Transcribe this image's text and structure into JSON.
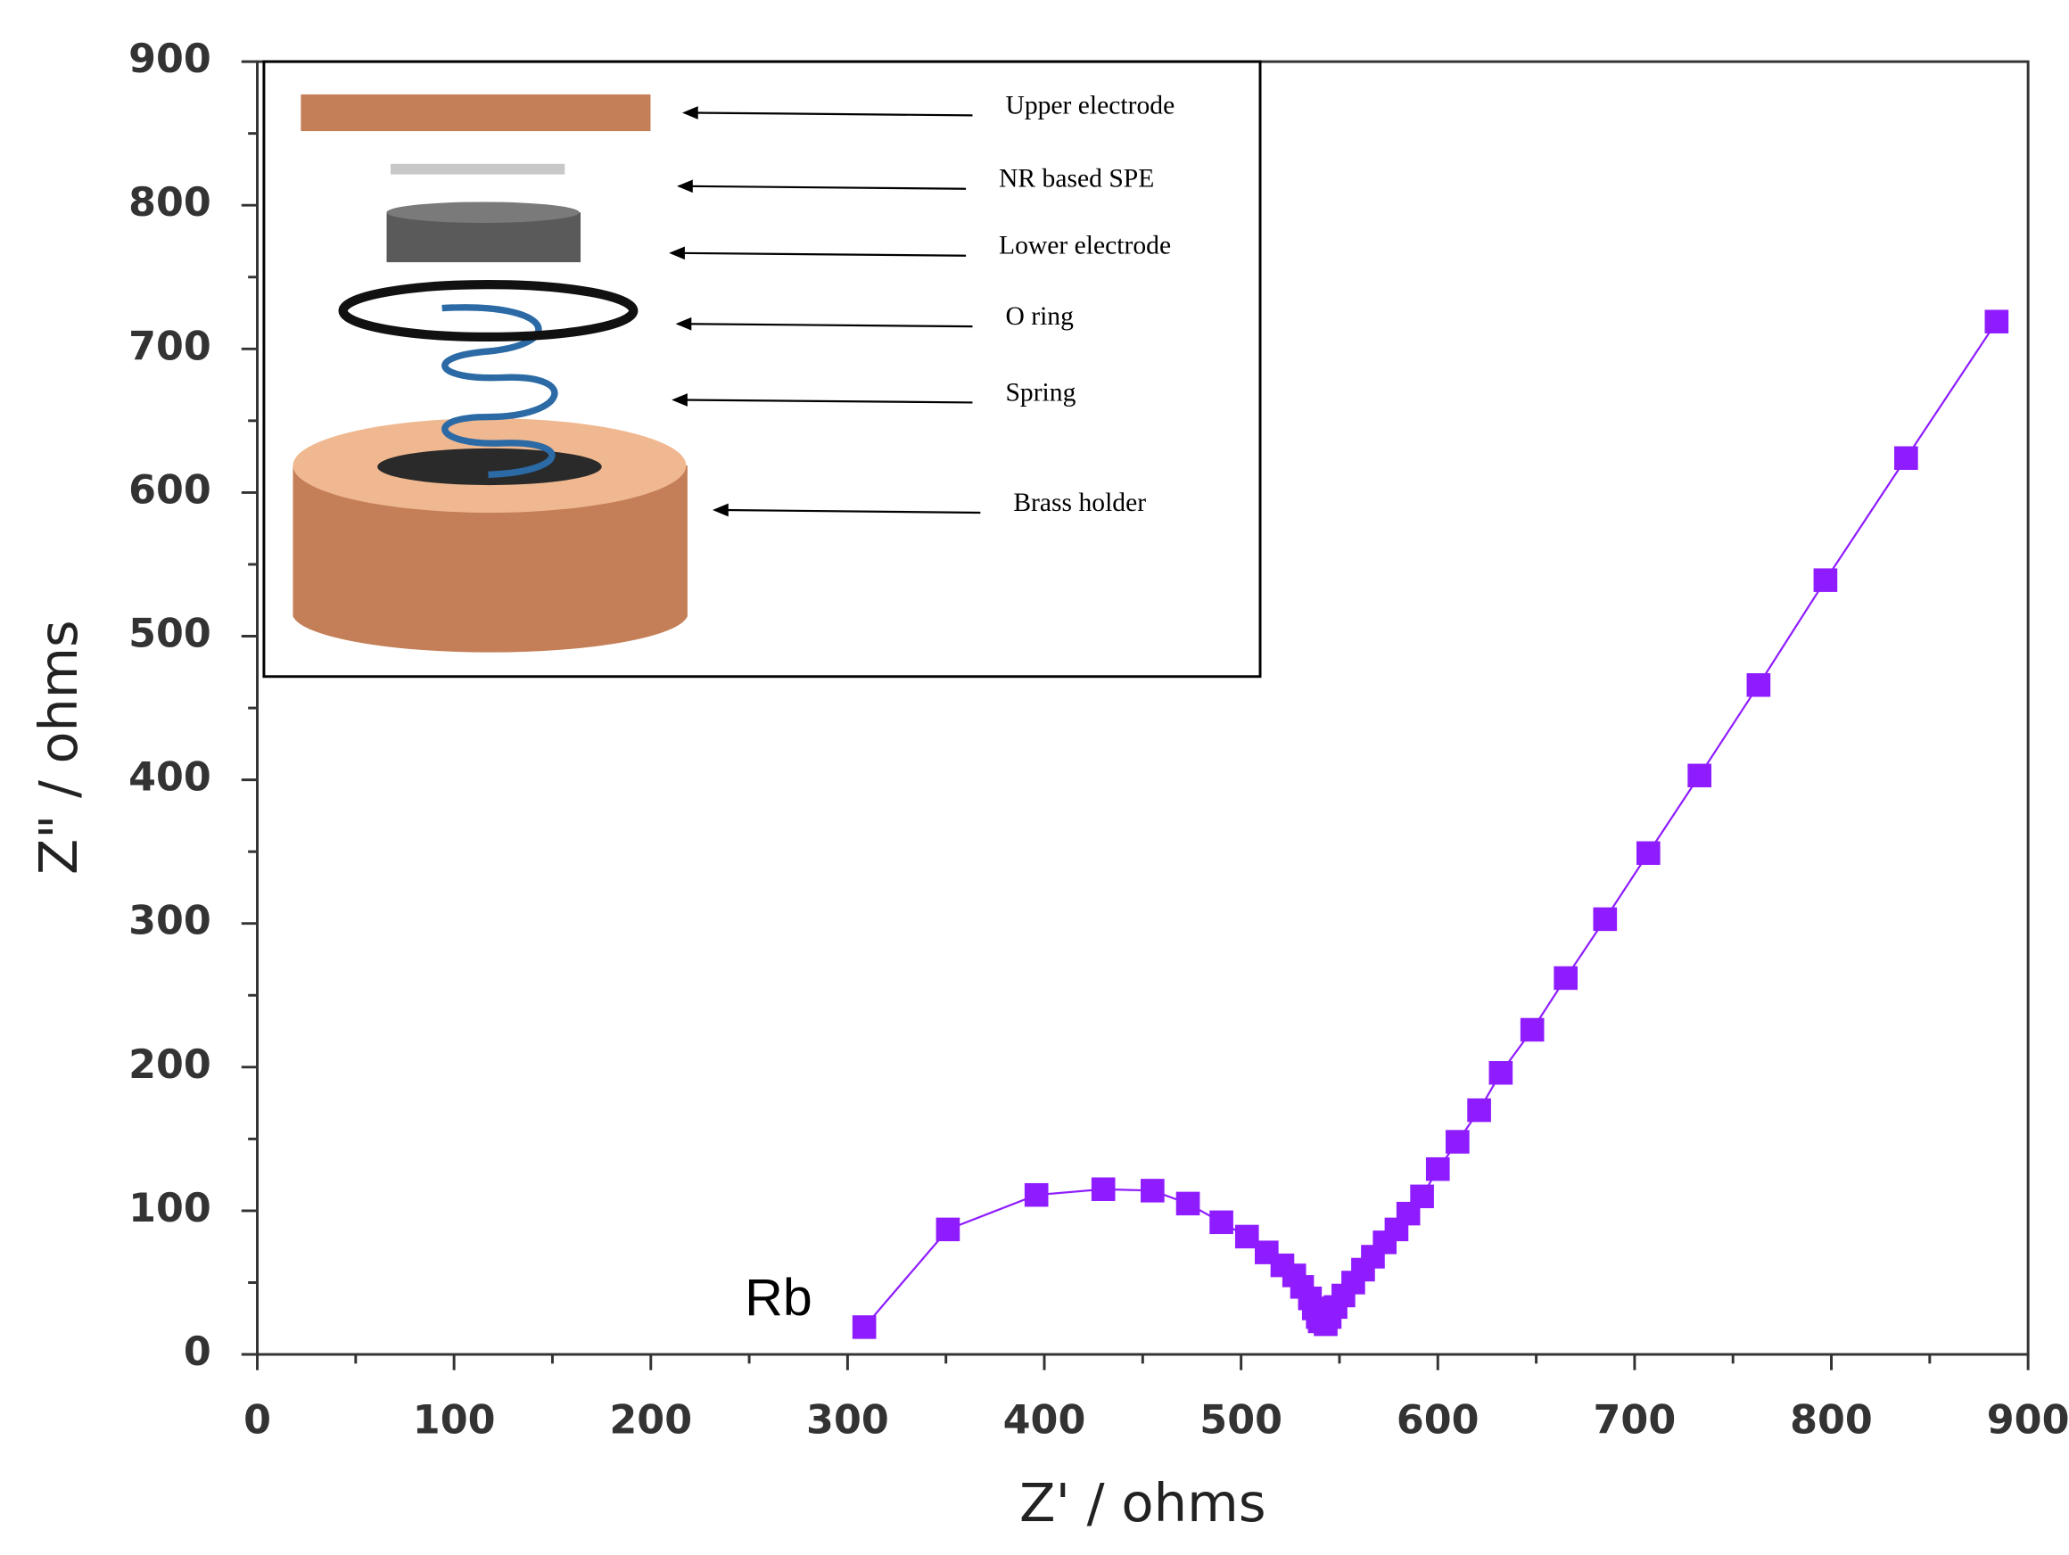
{
  "chart_data": {
    "type": "scatter",
    "x_label": "Z' / ohms",
    "y_label": "Z\" / ohms",
    "xlim": [
      0,
      900
    ],
    "ylim": [
      0,
      900
    ],
    "xticks": [
      0,
      100,
      200,
      300,
      400,
      500,
      600,
      700,
      800,
      900
    ],
    "yticks": [
      0,
      100,
      200,
      300,
      400,
      500,
      600,
      700,
      800,
      900
    ],
    "annotation": "Rb",
    "series": [
      {
        "color": "#8f1cff",
        "x": [
          308.5,
          351,
          396,
          430,
          455,
          473,
          490,
          503,
          513,
          521,
          527,
          531,
          535,
          537,
          539,
          540,
          543,
          545,
          548,
          552,
          557,
          562,
          567,
          573,
          579,
          585,
          592,
          600,
          610,
          621,
          632,
          648,
          665,
          685,
          707,
          733,
          763,
          797,
          838,
          884
        ],
        "values": [
          19,
          87,
          111,
          115,
          114,
          105,
          92,
          82,
          71,
          62,
          55,
          47,
          39,
          32,
          26,
          23,
          21,
          26,
          33,
          41,
          50,
          59,
          68,
          78,
          87,
          98,
          110,
          129,
          148,
          170,
          196,
          226,
          262,
          303,
          349,
          403,
          466,
          539,
          624,
          719
        ]
      }
    ],
    "inset_labels": [
      "Upper electrode",
      "NR based SPE",
      "Lower electrode",
      "O ring",
      "Spring",
      "Brass holder"
    ]
  }
}
